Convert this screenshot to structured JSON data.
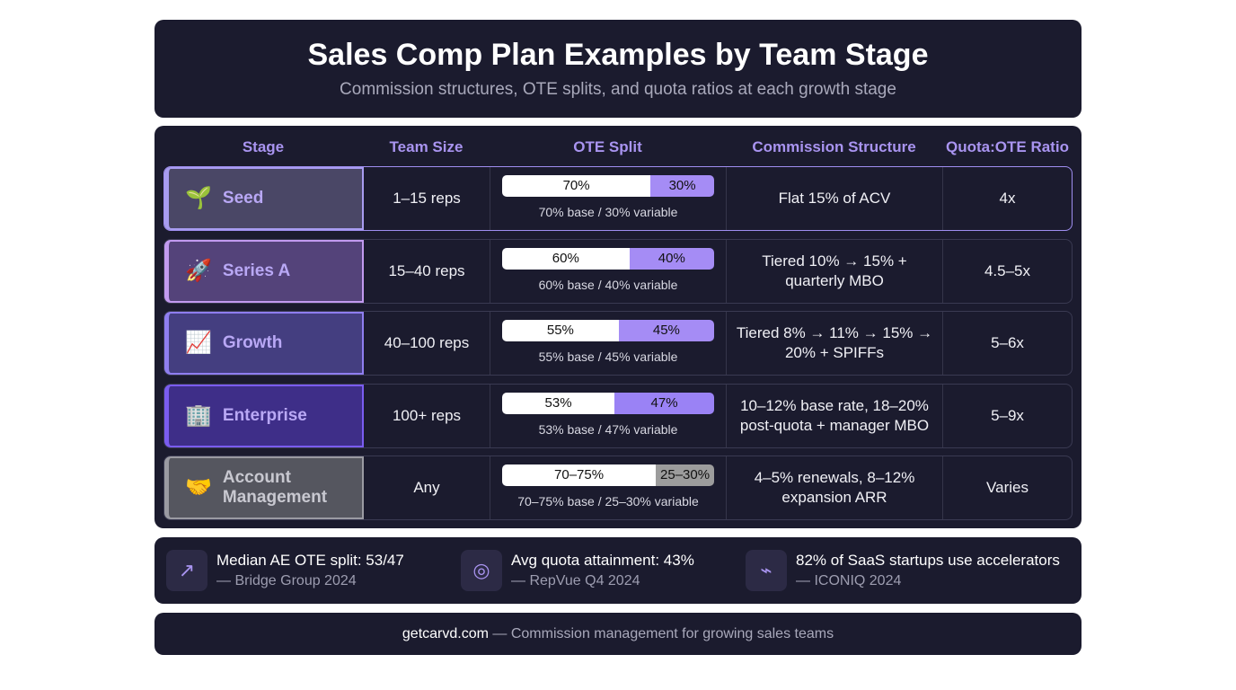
{
  "header": {
    "title": "Sales Comp Plan Examples by Team Stage",
    "subtitle": "Commission structures, OTE splits, and quota ratios at each growth stage"
  },
  "columns": [
    "Stage",
    "Team Size",
    "OTE Split",
    "Commission Structure",
    "Quota:OTE Ratio"
  ],
  "rows": [
    {
      "icon": "🌱",
      "icon_name": "seedling-icon",
      "stage": "Seed",
      "team": "1–15 reps",
      "base": "70%",
      "variable": "30%",
      "base_pct": 70,
      "caption": "70% base / 30% variable",
      "commission": "Flat 15% of ACV",
      "quota": "4x",
      "bg": "#4a4766",
      "accent": "#a89cf0",
      "var_color": "#a58cf5"
    },
    {
      "icon": "🚀",
      "icon_name": "rocket-icon",
      "stage": "Series A",
      "team": "15–40 reps",
      "base": "60%",
      "variable": "40%",
      "base_pct": 60,
      "caption": "60% base / 40% variable",
      "commission": "Tiered 10% → 15% + quarterly MBO",
      "quota": "4.5–5x",
      "bg": "#54437a",
      "accent": "#c29af0",
      "var_color": "#a58cf5"
    },
    {
      "icon": "📈",
      "icon_name": "chart-increasing-icon",
      "stage": "Growth",
      "team": "40–100 reps",
      "base": "55%",
      "variable": "45%",
      "base_pct": 55,
      "caption": "55% base / 45% variable",
      "commission": "Tiered 8% → 11% → 15% → 20% + SPIFFs",
      "quota": "5–6x",
      "bg": "#443e80",
      "accent": "#8f7ef0",
      "var_color": "#a58cf5"
    },
    {
      "icon": "🏢",
      "icon_name": "office-building-icon",
      "stage": "Enterprise",
      "team": "100+ reps",
      "base": "53%",
      "variable": "47%",
      "base_pct": 53,
      "caption": "53% base / 47% variable",
      "commission": "10–12% base rate, 18–20% post-quota + manager MBO",
      "quota": "5–9x",
      "bg": "#3e2e88",
      "accent": "#7a5cf0",
      "var_color": "#9a82f5"
    },
    {
      "icon": "🤝",
      "icon_name": "handshake-icon",
      "stage": "Account Management",
      "team": "Any",
      "base": "70–75%",
      "variable": "25–30%",
      "base_pct": 72.5,
      "caption": "70–75% base / 25–30% variable",
      "commission": "4–5% renewals, 8–12% expansion ARR",
      "quota": "Varies",
      "bg": "#55565f",
      "accent": "#9a9aa2",
      "var_color": "#9c9c9c"
    }
  ],
  "stats": [
    {
      "icon": "trend-up-icon",
      "glyph": "↗",
      "title": "Median AE OTE split: 53/47",
      "source": "— Bridge Group 2024"
    },
    {
      "icon": "target-icon",
      "glyph": "◎",
      "title": "Avg quota attainment: 43%",
      "source": "— RepVue Q4 2024"
    },
    {
      "icon": "accelerator-icon",
      "glyph": "⌁",
      "title": "82% of SaaS startups use accelerators",
      "source": "— ICONIQ 2024"
    }
  ],
  "footer": {
    "brand": "getcarvd.com",
    "tagline": " — Commission management for growing sales teams"
  }
}
